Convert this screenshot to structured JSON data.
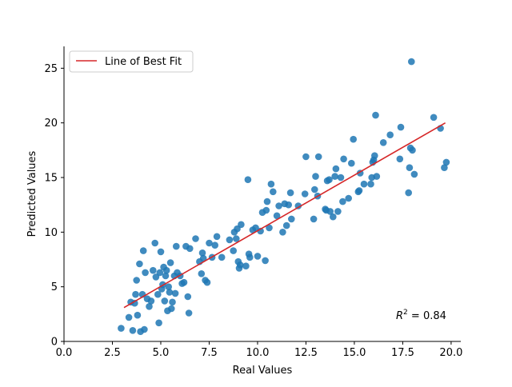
{
  "chart_data": {
    "type": "scatter",
    "xlabel": "Real Values",
    "ylabel": "Predicted Values",
    "xlim": [
      0,
      20.5
    ],
    "ylim": [
      0,
      27
    ],
    "x_ticks": [
      0,
      2.5,
      5,
      7.5,
      10,
      12.5,
      15,
      17.5,
      20
    ],
    "x_tick_labels": [
      "0.0",
      "2.5",
      "5.0",
      "7.5",
      "10.0",
      "12.5",
      "15.0",
      "17.5",
      "20.0"
    ],
    "y_ticks": [
      0,
      5,
      10,
      15,
      20,
      25
    ],
    "y_tick_labels": [
      "0",
      "5",
      "10",
      "15",
      "20",
      "25"
    ],
    "grid": false,
    "legend_position": "top-left",
    "legend_label": "Line of Best Fit",
    "annotation_base": "R",
    "annotation_exp": "2",
    "annotation_value": " = 0.84",
    "point_color": "#1f77b4",
    "line_color": "#d62728",
    "fit_line": {
      "x": [
        3.1,
        19.7
      ],
      "y": [
        3.1,
        20.0
      ]
    },
    "points": [
      [
        2.95,
        1.2
      ],
      [
        3.35,
        2.2
      ],
      [
        3.45,
        3.6
      ],
      [
        3.55,
        1.0
      ],
      [
        3.65,
        3.5
      ],
      [
        3.7,
        4.3
      ],
      [
        3.75,
        5.6
      ],
      [
        3.8,
        2.4
      ],
      [
        3.9,
        7.1
      ],
      [
        3.95,
        0.9
      ],
      [
        4.05,
        4.3
      ],
      [
        4.1,
        8.3
      ],
      [
        4.15,
        1.1
      ],
      [
        4.2,
        6.3
      ],
      [
        4.3,
        3.9
      ],
      [
        4.4,
        3.2
      ],
      [
        4.5,
        3.7
      ],
      [
        4.6,
        6.5
      ],
      [
        4.7,
        9.0
      ],
      [
        4.75,
        5.9
      ],
      [
        4.85,
        4.3
      ],
      [
        4.9,
        1.7
      ],
      [
        4.95,
        6.3
      ],
      [
        5.0,
        8.2
      ],
      [
        5.05,
        4.8
      ],
      [
        5.1,
        5.2
      ],
      [
        5.15,
        6.8
      ],
      [
        5.2,
        3.7
      ],
      [
        5.25,
        6.0
      ],
      [
        5.3,
        6.5
      ],
      [
        5.35,
        2.8
      ],
      [
        5.4,
        5.0
      ],
      [
        5.45,
        4.5
      ],
      [
        5.5,
        7.2
      ],
      [
        5.55,
        3.0
      ],
      [
        5.6,
        3.6
      ],
      [
        5.7,
        6.0
      ],
      [
        5.75,
        4.4
      ],
      [
        5.8,
        8.7
      ],
      [
        5.85,
        6.3
      ],
      [
        6.0,
        6.0
      ],
      [
        6.1,
        5.3
      ],
      [
        6.2,
        5.4
      ],
      [
        6.3,
        8.7
      ],
      [
        6.4,
        4.1
      ],
      [
        6.45,
        2.6
      ],
      [
        6.5,
        8.5
      ],
      [
        6.8,
        9.4
      ],
      [
        7.0,
        7.3
      ],
      [
        7.1,
        6.2
      ],
      [
        7.15,
        8.1
      ],
      [
        7.2,
        7.6
      ],
      [
        7.3,
        5.6
      ],
      [
        7.4,
        5.4
      ],
      [
        7.5,
        9.0
      ],
      [
        7.65,
        7.7
      ],
      [
        7.8,
        8.8
      ],
      [
        7.9,
        9.6
      ],
      [
        8.15,
        7.7
      ],
      [
        8.55,
        9.3
      ],
      [
        8.75,
        8.3
      ],
      [
        8.8,
        10.0
      ],
      [
        8.9,
        9.4
      ],
      [
        8.95,
        10.3
      ],
      [
        9.0,
        7.3
      ],
      [
        9.05,
        6.7
      ],
      [
        9.1,
        7.0
      ],
      [
        9.15,
        10.7
      ],
      [
        9.4,
        6.9
      ],
      [
        9.5,
        14.8
      ],
      [
        9.55,
        8.0
      ],
      [
        9.6,
        7.7
      ],
      [
        9.75,
        10.2
      ],
      [
        9.9,
        10.4
      ],
      [
        10.0,
        7.8
      ],
      [
        10.15,
        10.1
      ],
      [
        10.25,
        11.8
      ],
      [
        10.4,
        7.4
      ],
      [
        10.45,
        12.0
      ],
      [
        10.5,
        12.8
      ],
      [
        10.6,
        10.4
      ],
      [
        10.7,
        14.4
      ],
      [
        10.8,
        13.7
      ],
      [
        11.0,
        11.5
      ],
      [
        11.1,
        12.4
      ],
      [
        11.3,
        10.0
      ],
      [
        11.4,
        12.6
      ],
      [
        11.5,
        10.6
      ],
      [
        11.6,
        12.5
      ],
      [
        11.7,
        13.6
      ],
      [
        11.75,
        11.2
      ],
      [
        12.1,
        12.4
      ],
      [
        12.45,
        13.5
      ],
      [
        12.5,
        16.9
      ],
      [
        12.9,
        11.2
      ],
      [
        12.95,
        13.9
      ],
      [
        13.0,
        15.1
      ],
      [
        13.1,
        13.3
      ],
      [
        13.15,
        16.9
      ],
      [
        13.5,
        12.1
      ],
      [
        13.55,
        12.0
      ],
      [
        13.6,
        14.7
      ],
      [
        13.7,
        14.8
      ],
      [
        13.75,
        11.9
      ],
      [
        13.9,
        11.4
      ],
      [
        14.0,
        15.1
      ],
      [
        14.05,
        15.8
      ],
      [
        14.15,
        11.9
      ],
      [
        14.3,
        15.0
      ],
      [
        14.4,
        12.8
      ],
      [
        14.45,
        16.7
      ],
      [
        14.7,
        13.1
      ],
      [
        14.85,
        16.3
      ],
      [
        14.95,
        18.5
      ],
      [
        15.2,
        13.7
      ],
      [
        15.25,
        13.8
      ],
      [
        15.3,
        15.4
      ],
      [
        15.5,
        14.4
      ],
      [
        15.85,
        14.4
      ],
      [
        15.9,
        15.0
      ],
      [
        15.95,
        16.4
      ],
      [
        16.0,
        16.6
      ],
      [
        16.05,
        17.0
      ],
      [
        16.1,
        20.7
      ],
      [
        16.15,
        15.1
      ],
      [
        16.5,
        18.2
      ],
      [
        16.85,
        18.9
      ],
      [
        17.35,
        16.7
      ],
      [
        17.4,
        19.6
      ],
      [
        17.8,
        13.6
      ],
      [
        17.85,
        15.9
      ],
      [
        17.9,
        17.7
      ],
      [
        17.95,
        25.6
      ],
      [
        18.0,
        17.5
      ],
      [
        18.1,
        15.3
      ],
      [
        19.1,
        20.5
      ],
      [
        19.45,
        19.5
      ],
      [
        19.65,
        15.9
      ],
      [
        19.75,
        16.4
      ]
    ]
  }
}
